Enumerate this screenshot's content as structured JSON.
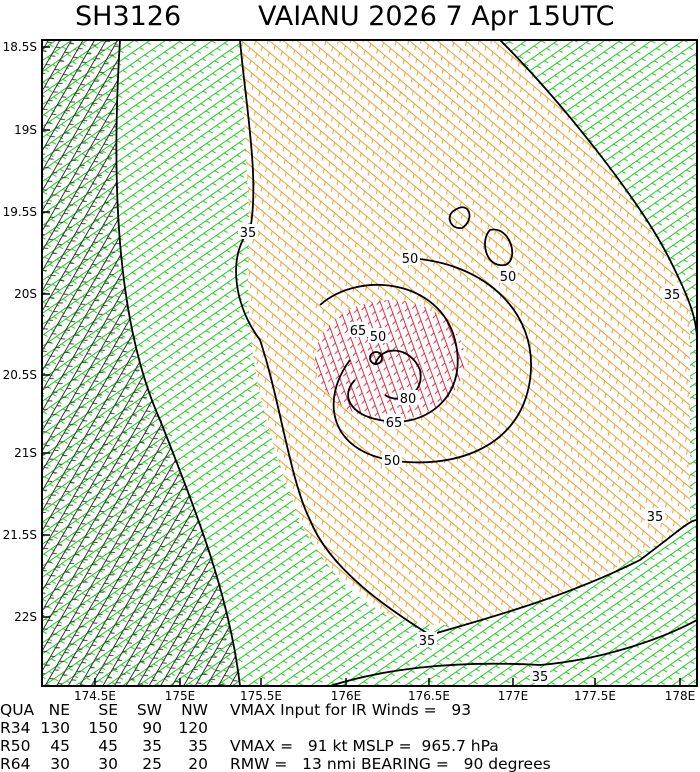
{
  "header": {
    "storm_id": "SH3126",
    "storm_info": "VAIANU 2026  7 Apr 15UTC"
  },
  "map": {
    "lat_labels": [
      "18.5S",
      "19S",
      "19.5S",
      "20S",
      "20.5S",
      "21S",
      "21.5S",
      "22S"
    ],
    "lon_labels": [
      "174.5E",
      "175E",
      "175.5E",
      "176E",
      "176.5E",
      "177E",
      "177.5E",
      "178E"
    ],
    "contour_labels": [
      "35",
      "50",
      "50",
      "35",
      "65",
      "50",
      "80",
      "65",
      "50",
      "35",
      "35",
      "35"
    ]
  },
  "table": {
    "header": [
      "QUA",
      "NE",
      "SE",
      "SW",
      "NW"
    ],
    "rows": [
      [
        "R34",
        "130",
        "150",
        "90",
        "120"
      ],
      [
        "R50",
        "45",
        "45",
        "35",
        "35"
      ],
      [
        "R64",
        "30",
        "30",
        "25",
        "20"
      ]
    ]
  },
  "info": [
    "VMAX Input for IR Winds =   93",
    "VMAX =   91 kt MSLP =  965.7 hPa",
    "RMW =   13 nmi BEARING =   90 degrees"
  ]
}
